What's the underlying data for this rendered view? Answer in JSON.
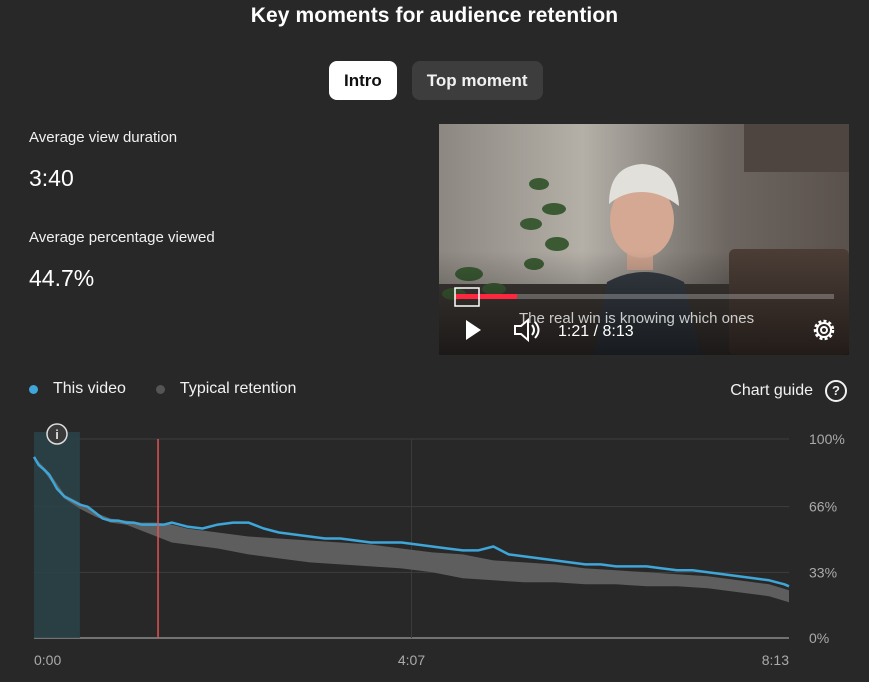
{
  "title": "Key moments for audience retention",
  "tabs": [
    {
      "label": "Intro",
      "active": true
    },
    {
      "label": "Top moment",
      "active": false
    }
  ],
  "stats": {
    "avg_view_duration_label": "Average view duration",
    "avg_view_duration_value": "3:40",
    "avg_pct_viewed_label": "Average percentage viewed",
    "avg_pct_viewed_value": "44.7%"
  },
  "video": {
    "caption": "The real win is knowing which ones",
    "time": "1:21 / 8:13",
    "progress_fraction": 0.164,
    "icons": [
      "play-icon",
      "volume-icon",
      "settings-icon"
    ]
  },
  "legend": {
    "this_video": "This video",
    "typical": "Typical retention"
  },
  "chart_guide_label": "Chart guide",
  "info_icon_symbol": "i",
  "help_icon_symbol": "?",
  "colors": {
    "this_video": "#3ea6d8",
    "typical_band": "#5e5e5e",
    "marker": "#e05454",
    "intro_highlight": "#294349",
    "background": "#282828"
  },
  "chart_data": {
    "type": "line",
    "xlabel": "",
    "ylabel": "",
    "x_ticks": [
      "0:00",
      "4:07",
      "8:13"
    ],
    "y_ticks": [
      "100%",
      "66%",
      "33%",
      "0%"
    ],
    "ylim": [
      0,
      100
    ],
    "xlim_seconds": [
      0,
      493
    ],
    "intro_end_seconds": 30,
    "marker_seconds": 81,
    "grid": true,
    "legend_position": "top-left",
    "series": [
      {
        "name": "This video",
        "x": [
          0,
          3,
          6,
          10,
          15,
          20,
          25,
          30,
          35,
          40,
          45,
          50,
          55,
          60,
          65,
          70,
          75,
          80,
          85,
          90,
          95,
          100,
          110,
          120,
          130,
          140,
          150,
          160,
          170,
          180,
          190,
          200,
          210,
          220,
          230,
          240,
          250,
          260,
          270,
          280,
          290,
          300,
          310,
          320,
          330,
          340,
          350,
          360,
          370,
          380,
          390,
          400,
          410,
          420,
          430,
          440,
          450,
          460,
          470,
          480,
          485,
          490,
          493
        ],
        "y": [
          91,
          87,
          85,
          82,
          75,
          71,
          69,
          67,
          66,
          63,
          60,
          59,
          59,
          58,
          58,
          57,
          57,
          57,
          57,
          58,
          57,
          56,
          55,
          57,
          58,
          58,
          55,
          53,
          52,
          51,
          50,
          50,
          49,
          48,
          48,
          48,
          47,
          46,
          45,
          44,
          44,
          46,
          42,
          41,
          40,
          39,
          38,
          37,
          37,
          36,
          36,
          36,
          35,
          34,
          34,
          33,
          32,
          31,
          30,
          29,
          28,
          27,
          26
        ]
      },
      {
        "name": "Typical retention",
        "x": [
          0,
          10,
          20,
          30,
          40,
          50,
          60,
          70,
          80,
          90,
          100,
          120,
          140,
          160,
          180,
          200,
          220,
          240,
          260,
          280,
          300,
          320,
          340,
          360,
          380,
          400,
          420,
          440,
          460,
          480,
          493
        ],
        "low": [
          91,
          80,
          70,
          65,
          61,
          58,
          57,
          54,
          51,
          48,
          47,
          45,
          42,
          40,
          38,
          37,
          36,
          35,
          33,
          30,
          29,
          28,
          28,
          27,
          27,
          26,
          26,
          25,
          23,
          21,
          18
        ],
        "high": [
          91,
          83,
          72,
          68,
          63,
          60,
          59,
          58,
          58,
          57,
          55,
          53,
          51,
          50,
          49,
          48,
          47,
          45,
          43,
          42,
          39,
          38,
          37,
          35,
          34,
          33,
          32,
          31,
          29,
          27,
          24
        ]
      }
    ]
  }
}
